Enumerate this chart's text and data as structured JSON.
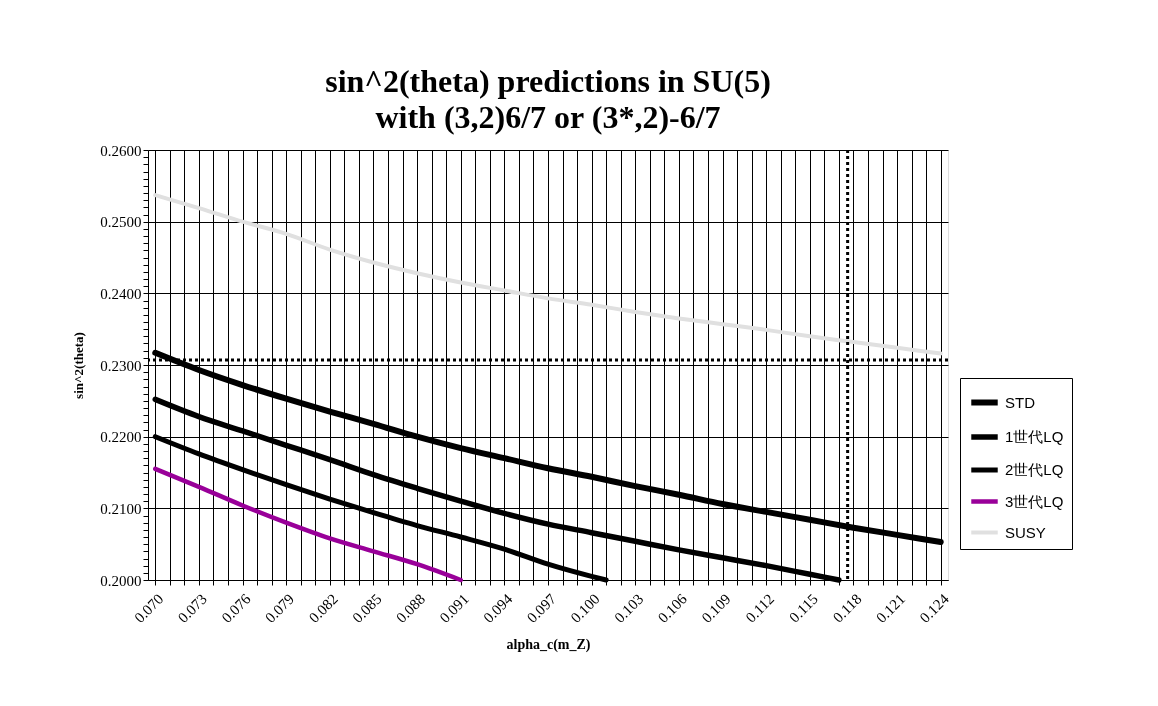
{
  "chart_data": {
    "type": "line",
    "title": "sin^2(theta) predictions in SU(5)",
    "subtitle": "with (3,2)6/7 or (3*,2)-6/7",
    "xlabel": "alpha_c(m_Z)",
    "ylabel": "sin^2(theta)",
    "xlim": [
      0.0695,
      0.1245
    ],
    "ylim": [
      0.2,
      0.26
    ],
    "xticks": [
      {
        "value": 0.07,
        "label": "0.070"
      },
      {
        "value": 0.071,
        "label": null
      },
      {
        "value": 0.072,
        "label": null
      },
      {
        "value": 0.073,
        "label": "0.073"
      },
      {
        "value": 0.074,
        "label": null
      },
      {
        "value": 0.075,
        "label": null
      },
      {
        "value": 0.076,
        "label": "0.076"
      },
      {
        "value": 0.077,
        "label": null
      },
      {
        "value": 0.078,
        "label": null
      },
      {
        "value": 0.079,
        "label": "0.079"
      },
      {
        "value": 0.08,
        "label": null
      },
      {
        "value": 0.081,
        "label": null
      },
      {
        "value": 0.082,
        "label": "0.082"
      },
      {
        "value": 0.083,
        "label": null
      },
      {
        "value": 0.084,
        "label": null
      },
      {
        "value": 0.085,
        "label": "0.085"
      },
      {
        "value": 0.086,
        "label": null
      },
      {
        "value": 0.087,
        "label": null
      },
      {
        "value": 0.088,
        "label": "0.088"
      },
      {
        "value": 0.089,
        "label": null
      },
      {
        "value": 0.09,
        "label": null
      },
      {
        "value": 0.091,
        "label": "0.091"
      },
      {
        "value": 0.092,
        "label": null
      },
      {
        "value": 0.093,
        "label": null
      },
      {
        "value": 0.094,
        "label": "0.094"
      },
      {
        "value": 0.095,
        "label": null
      },
      {
        "value": 0.096,
        "label": null
      },
      {
        "value": 0.097,
        "label": "0.097"
      },
      {
        "value": 0.098,
        "label": null
      },
      {
        "value": 0.099,
        "label": null
      },
      {
        "value": 0.1,
        "label": "0.100"
      },
      {
        "value": 0.101,
        "label": null
      },
      {
        "value": 0.102,
        "label": null
      },
      {
        "value": 0.103,
        "label": "0.103"
      },
      {
        "value": 0.104,
        "label": null
      },
      {
        "value": 0.105,
        "label": null
      },
      {
        "value": 0.106,
        "label": "0.106"
      },
      {
        "value": 0.107,
        "label": null
      },
      {
        "value": 0.108,
        "label": null
      },
      {
        "value": 0.109,
        "label": "0.109"
      },
      {
        "value": 0.11,
        "label": null
      },
      {
        "value": 0.111,
        "label": null
      },
      {
        "value": 0.112,
        "label": "0.112"
      },
      {
        "value": 0.113,
        "label": null
      },
      {
        "value": 0.114,
        "label": null
      },
      {
        "value": 0.115,
        "label": "0.115"
      },
      {
        "value": 0.116,
        "label": null
      },
      {
        "value": 0.117,
        "label": null
      },
      {
        "value": 0.118,
        "label": "0.118"
      },
      {
        "value": 0.119,
        "label": null
      },
      {
        "value": 0.12,
        "label": null
      },
      {
        "value": 0.121,
        "label": "0.121"
      },
      {
        "value": 0.122,
        "label": null
      },
      {
        "value": 0.123,
        "label": null
      },
      {
        "value": 0.124,
        "label": "0.124"
      }
    ],
    "yticks": [
      {
        "value": 0.2,
        "label": "0.2000"
      },
      {
        "value": 0.201,
        "label": null
      },
      {
        "value": 0.202,
        "label": null
      },
      {
        "value": 0.203,
        "label": null
      },
      {
        "value": 0.204,
        "label": null
      },
      {
        "value": 0.205,
        "label": null
      },
      {
        "value": 0.206,
        "label": null
      },
      {
        "value": 0.207,
        "label": null
      },
      {
        "value": 0.208,
        "label": null
      },
      {
        "value": 0.209,
        "label": null
      },
      {
        "value": 0.21,
        "label": "0.2100"
      },
      {
        "value": 0.211,
        "label": null
      },
      {
        "value": 0.212,
        "label": null
      },
      {
        "value": 0.213,
        "label": null
      },
      {
        "value": 0.214,
        "label": null
      },
      {
        "value": 0.215,
        "label": null
      },
      {
        "value": 0.216,
        "label": null
      },
      {
        "value": 0.217,
        "label": null
      },
      {
        "value": 0.218,
        "label": null
      },
      {
        "value": 0.219,
        "label": null
      },
      {
        "value": 0.22,
        "label": "0.2200"
      },
      {
        "value": 0.221,
        "label": null
      },
      {
        "value": 0.222,
        "label": null
      },
      {
        "value": 0.223,
        "label": null
      },
      {
        "value": 0.224,
        "label": null
      },
      {
        "value": 0.225,
        "label": null
      },
      {
        "value": 0.226,
        "label": null
      },
      {
        "value": 0.227,
        "label": null
      },
      {
        "value": 0.228,
        "label": null
      },
      {
        "value": 0.229,
        "label": null
      },
      {
        "value": 0.23,
        "label": "0.2300"
      },
      {
        "value": 0.231,
        "label": null
      },
      {
        "value": 0.232,
        "label": null
      },
      {
        "value": 0.233,
        "label": null
      },
      {
        "value": 0.234,
        "label": null
      },
      {
        "value": 0.235,
        "label": null
      },
      {
        "value": 0.236,
        "label": null
      },
      {
        "value": 0.237,
        "label": null
      },
      {
        "value": 0.238,
        "label": null
      },
      {
        "value": 0.239,
        "label": null
      },
      {
        "value": 0.24,
        "label": "0.2400"
      },
      {
        "value": 0.241,
        "label": null
      },
      {
        "value": 0.242,
        "label": null
      },
      {
        "value": 0.243,
        "label": null
      },
      {
        "value": 0.244,
        "label": null
      },
      {
        "value": 0.245,
        "label": null
      },
      {
        "value": 0.246,
        "label": null
      },
      {
        "value": 0.247,
        "label": null
      },
      {
        "value": 0.248,
        "label": null
      },
      {
        "value": 0.249,
        "label": null
      },
      {
        "value": 0.25,
        "label": "0.2500"
      },
      {
        "value": 0.251,
        "label": null
      },
      {
        "value": 0.252,
        "label": null
      },
      {
        "value": 0.253,
        "label": null
      },
      {
        "value": 0.254,
        "label": null
      },
      {
        "value": 0.255,
        "label": null
      },
      {
        "value": 0.256,
        "label": null
      },
      {
        "value": 0.257,
        "label": null
      },
      {
        "value": 0.258,
        "label": null
      },
      {
        "value": 0.259,
        "label": null
      },
      {
        "value": 0.26,
        "label": "0.2600"
      }
    ],
    "grid": true,
    "legend": "right",
    "line_style": "solid",
    "marker": "none",
    "series": [
      {
        "name": "STD",
        "color": "#000000",
        "x": [
          0.07,
          0.073,
          0.076,
          0.079,
          0.082,
          0.085,
          0.088,
          0.091,
          0.094,
          0.097,
          0.1,
          0.103,
          0.106,
          0.109,
          0.112,
          0.115,
          0.118,
          0.121,
          0.124
        ],
        "values": [
          0.2317,
          0.2293,
          0.2272,
          0.2253,
          0.2235,
          0.2218,
          0.22,
          0.2184,
          0.217,
          0.2156,
          0.2144,
          0.2131,
          0.2119,
          0.2106,
          0.2095,
          0.2084,
          0.2073,
          0.2063,
          0.2053
        ]
      },
      {
        "name": "1世代LQ",
        "color": "#000000",
        "x": [
          0.07,
          0.073,
          0.076,
          0.079,
          0.082,
          0.085,
          0.088,
          0.091,
          0.094,
          0.097,
          0.1,
          0.103,
          0.106,
          0.109,
          0.112,
          0.115,
          0.117
        ],
        "values": [
          0.2252,
          0.2228,
          0.2208,
          0.2188,
          0.2168,
          0.2147,
          0.2128,
          0.211,
          0.2093,
          0.2078,
          0.2066,
          0.2054,
          0.2042,
          0.2031,
          0.202,
          0.2008,
          0.2
        ]
      },
      {
        "name": "2世代LQ",
        "color": "#000000",
        "x": [
          0.07,
          0.073,
          0.076,
          0.079,
          0.082,
          0.085,
          0.088,
          0.091,
          0.094,
          0.097,
          0.1,
          0.101
        ],
        "values": [
          0.22,
          0.2176,
          0.2154,
          0.2133,
          0.2113,
          0.2094,
          0.2076,
          0.206,
          0.2043,
          0.2022,
          0.2005,
          0.2
        ]
      },
      {
        "name": "3世代LQ",
        "color": "#990099",
        "x": [
          0.07,
          0.073,
          0.076,
          0.079,
          0.082,
          0.085,
          0.088,
          0.091
        ],
        "values": [
          0.2155,
          0.213,
          0.2104,
          0.208,
          0.2058,
          0.204,
          0.2022,
          0.2
        ]
      },
      {
        "name": "SUSY",
        "color": "#e0e0e0",
        "x": [
          0.07,
          0.073,
          0.076,
          0.079,
          0.082,
          0.085,
          0.088,
          0.091,
          0.094,
          0.097,
          0.1,
          0.103,
          0.106,
          0.109,
          0.112,
          0.115,
          0.118,
          0.121,
          0.124
        ],
        "values": [
          0.2537,
          0.2519,
          0.25,
          0.2483,
          0.2461,
          0.2443,
          0.2428,
          0.2415,
          0.2404,
          0.2393,
          0.2384,
          0.2374,
          0.2365,
          0.2357,
          0.2349,
          0.234,
          0.2332,
          0.2324,
          0.2316
        ]
      }
    ],
    "ref_lines": [
      {
        "axis": "y",
        "value": 0.2307,
        "color": "#000000",
        "line_style": "dotted"
      },
      {
        "axis": "x",
        "value": 0.1176,
        "color": "#000000",
        "line_style": "dotted"
      }
    ]
  }
}
